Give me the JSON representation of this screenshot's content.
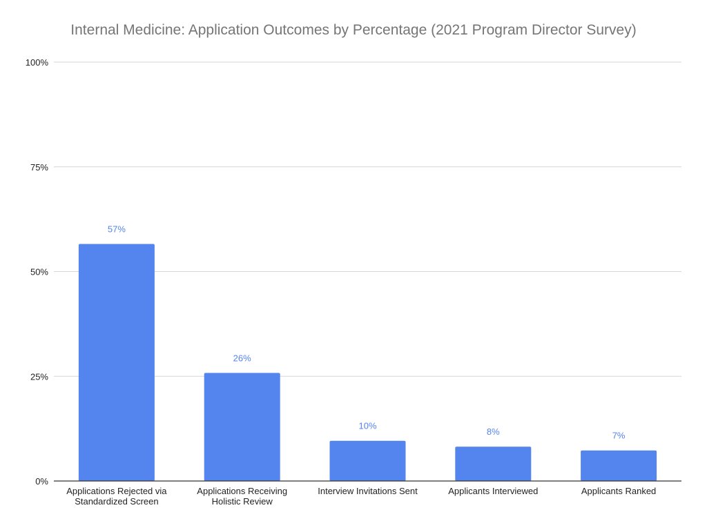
{
  "chart_data": {
    "type": "bar",
    "title": "Internal Medicine: Application Outcomes by Percentage (2021 Program Director Survey)",
    "xlabel": "",
    "ylabel": "",
    "categories": [
      [
        "Applications Rejected via",
        "Standardized Screen"
      ],
      [
        "Applications Receiving",
        "Holistic Review"
      ],
      [
        "Interview Invitations Sent"
      ],
      [
        "Applicants Interviewed"
      ],
      [
        "Applicants Ranked"
      ]
    ],
    "values": [
      56.6,
      25.8,
      9.6,
      8.2,
      7.3
    ],
    "data_labels": [
      "57%",
      "26%",
      "10%",
      "8%",
      "7%"
    ],
    "ylim": [
      0,
      100
    ],
    "yticks": [
      0,
      25,
      50,
      75,
      100
    ],
    "ytick_labels": [
      "0%",
      "25%",
      "50%",
      "75%",
      "100%"
    ],
    "grid": true,
    "legend": "none",
    "colors": {
      "bar": "#5484ed",
      "data_label": "#5484ed",
      "grid": "#d6d6d6",
      "axis": "#333333",
      "title": "#757575",
      "tick_label": "#222222"
    }
  }
}
